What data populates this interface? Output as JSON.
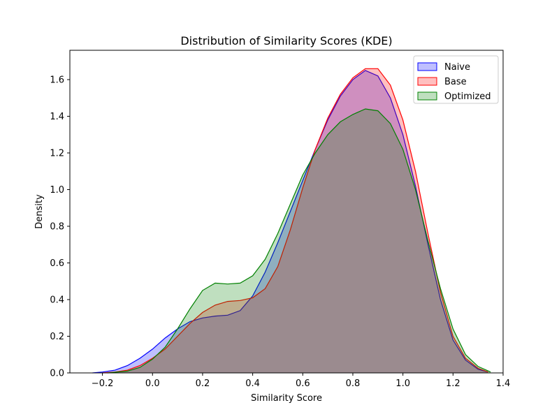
{
  "chart_data": {
    "type": "area",
    "title": "Distribution of Similarity Scores (KDE)",
    "xlabel": "Similarity Score",
    "ylabel": "Density",
    "xlim": [
      -0.33,
      1.4
    ],
    "ylim": [
      0,
      1.76
    ],
    "xticks": [
      -0.2,
      0.0,
      0.2,
      0.4,
      0.6,
      0.8,
      1.0,
      1.2,
      1.4
    ],
    "yticks": [
      0.0,
      0.2,
      0.4,
      0.6,
      0.8,
      1.0,
      1.2,
      1.4,
      1.6
    ],
    "grid": false,
    "legend_position": "top-right",
    "series": [
      {
        "name": "Naive",
        "color": "#0000ff",
        "points": [
          [
            -0.24,
            0.0
          ],
          [
            -0.2,
            0.005
          ],
          [
            -0.15,
            0.015
          ],
          [
            -0.1,
            0.04
          ],
          [
            -0.05,
            0.08
          ],
          [
            0.0,
            0.13
          ],
          [
            0.05,
            0.19
          ],
          [
            0.1,
            0.24
          ],
          [
            0.15,
            0.28
          ],
          [
            0.2,
            0.3
          ],
          [
            0.25,
            0.31
          ],
          [
            0.3,
            0.315
          ],
          [
            0.35,
            0.34
          ],
          [
            0.4,
            0.42
          ],
          [
            0.45,
            0.55
          ],
          [
            0.5,
            0.71
          ],
          [
            0.55,
            0.88
          ],
          [
            0.6,
            1.05
          ],
          [
            0.65,
            1.22
          ],
          [
            0.7,
            1.38
          ],
          [
            0.75,
            1.51
          ],
          [
            0.8,
            1.6
          ],
          [
            0.85,
            1.65
          ],
          [
            0.9,
            1.62
          ],
          [
            0.95,
            1.5
          ],
          [
            1.0,
            1.3
          ],
          [
            1.05,
            1.02
          ],
          [
            1.1,
            0.7
          ],
          [
            1.15,
            0.4
          ],
          [
            1.2,
            0.18
          ],
          [
            1.25,
            0.07
          ],
          [
            1.3,
            0.02
          ],
          [
            1.34,
            0.005
          ]
        ]
      },
      {
        "name": "Base",
        "color": "#ff0000",
        "points": [
          [
            -0.2,
            0.0
          ],
          [
            -0.15,
            0.005
          ],
          [
            -0.1,
            0.015
          ],
          [
            -0.05,
            0.04
          ],
          [
            0.0,
            0.08
          ],
          [
            0.05,
            0.13
          ],
          [
            0.1,
            0.2
          ],
          [
            0.15,
            0.27
          ],
          [
            0.2,
            0.33
          ],
          [
            0.25,
            0.37
          ],
          [
            0.3,
            0.39
          ],
          [
            0.35,
            0.395
          ],
          [
            0.4,
            0.41
          ],
          [
            0.45,
            0.46
          ],
          [
            0.5,
            0.58
          ],
          [
            0.55,
            0.78
          ],
          [
            0.6,
            1.01
          ],
          [
            0.65,
            1.22
          ],
          [
            0.7,
            1.39
          ],
          [
            0.75,
            1.52
          ],
          [
            0.8,
            1.61
          ],
          [
            0.85,
            1.66
          ],
          [
            0.9,
            1.66
          ],
          [
            0.95,
            1.57
          ],
          [
            1.0,
            1.38
          ],
          [
            1.05,
            1.1
          ],
          [
            1.1,
            0.76
          ],
          [
            1.15,
            0.44
          ],
          [
            1.2,
            0.2
          ],
          [
            1.25,
            0.08
          ],
          [
            1.3,
            0.025
          ],
          [
            1.34,
            0.005
          ]
        ]
      },
      {
        "name": "Optimized",
        "color": "#008000",
        "points": [
          [
            -0.18,
            0.0
          ],
          [
            -0.1,
            0.01
          ],
          [
            -0.05,
            0.03
          ],
          [
            0.0,
            0.075
          ],
          [
            0.05,
            0.14
          ],
          [
            0.1,
            0.24
          ],
          [
            0.15,
            0.35
          ],
          [
            0.2,
            0.45
          ],
          [
            0.25,
            0.49
          ],
          [
            0.3,
            0.485
          ],
          [
            0.35,
            0.49
          ],
          [
            0.4,
            0.53
          ],
          [
            0.45,
            0.62
          ],
          [
            0.5,
            0.76
          ],
          [
            0.55,
            0.92
          ],
          [
            0.6,
            1.08
          ],
          [
            0.65,
            1.2
          ],
          [
            0.7,
            1.3
          ],
          [
            0.75,
            1.37
          ],
          [
            0.8,
            1.41
          ],
          [
            0.85,
            1.44
          ],
          [
            0.9,
            1.43
          ],
          [
            0.95,
            1.36
          ],
          [
            1.0,
            1.22
          ],
          [
            1.05,
            1.0
          ],
          [
            1.1,
            0.72
          ],
          [
            1.15,
            0.46
          ],
          [
            1.2,
            0.24
          ],
          [
            1.25,
            0.1
          ],
          [
            1.3,
            0.035
          ],
          [
            1.35,
            0.005
          ]
        ]
      }
    ]
  }
}
